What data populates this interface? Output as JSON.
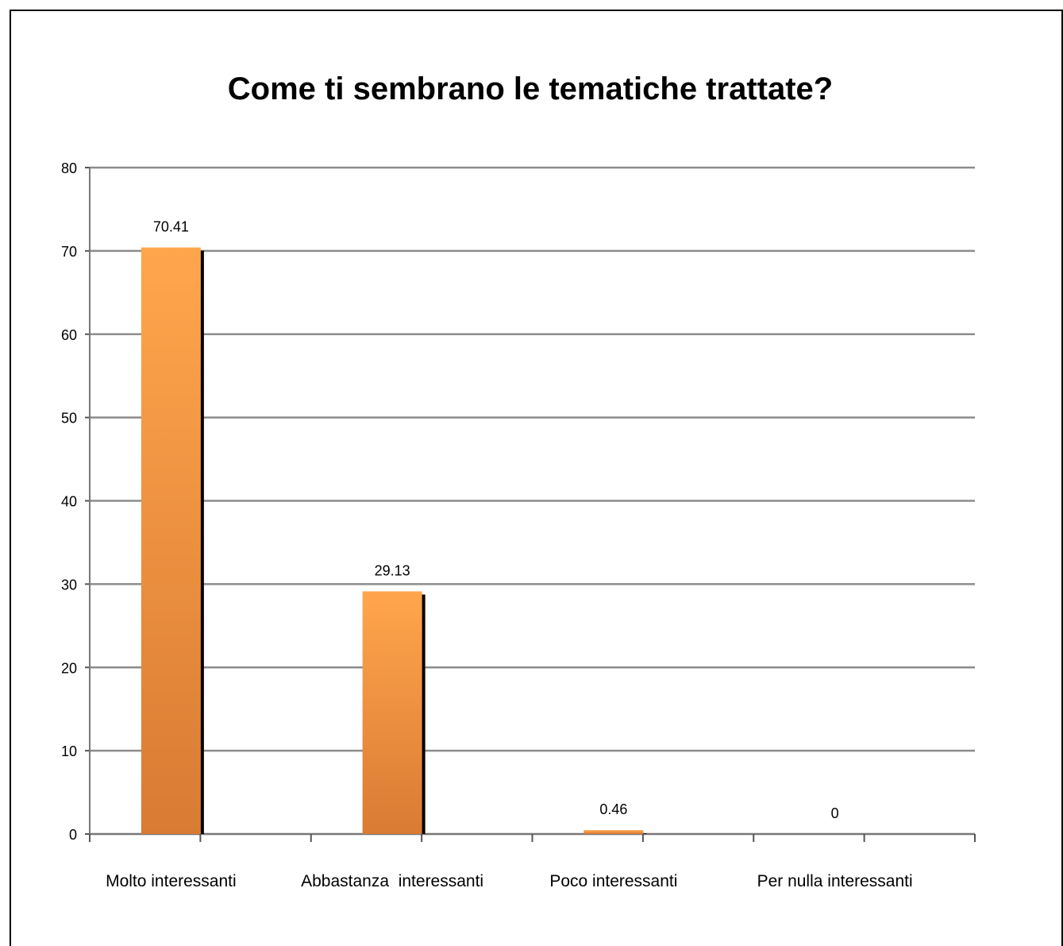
{
  "chart_data": {
    "type": "bar",
    "title": "Come ti sembrano le tematiche trattate?",
    "categories": [
      "Molto interessanti",
      "Abbastanza  interessanti",
      "Poco interessanti",
      "Per nulla interessanti"
    ],
    "values": [
      70.41,
      29.13,
      0.46,
      0
    ],
    "value_labels": [
      "70.41",
      "29.13",
      "0.46",
      "0"
    ],
    "ylim": [
      0,
      80
    ],
    "yticks": [
      "0",
      "10",
      "20",
      "30",
      "40",
      "50",
      "60",
      "70",
      "80"
    ],
    "grid": true,
    "legend": "none",
    "colors": {
      "bar_top": "#ffa64d",
      "bar_bottom": "#d97b33",
      "bar_shadow": "#000000",
      "grid": "#8c8c8c"
    }
  }
}
